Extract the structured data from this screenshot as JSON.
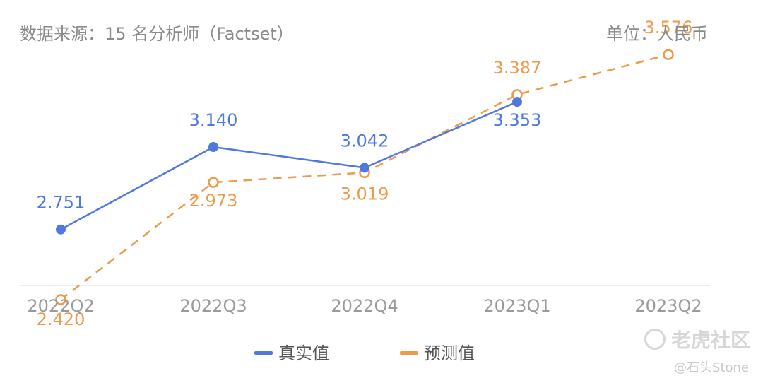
{
  "header": {
    "source": "数据来源：15 名分析师（Factset）",
    "unit": "单位：人民币"
  },
  "legend": {
    "actual": "真实值",
    "forecast": "预测值"
  },
  "watermark": {
    "brand": "老虎社区",
    "user": "@石头Stone"
  },
  "colors": {
    "actual": "#4f79dd",
    "forecast": "#ec9a4c",
    "axis_text": "#9a9a9a",
    "baseline": "#e6e6e6"
  },
  "chart_data": {
    "type": "line",
    "categories": [
      "2022Q2",
      "2022Q3",
      "2022Q4",
      "2023Q1",
      "2023Q2"
    ],
    "ylim": [
      2.2,
      3.7
    ],
    "grid": false,
    "legend_position": "bottom",
    "series": [
      {
        "name": "真实值",
        "values": [
          2.751,
          3.14,
          3.042,
          3.353,
          null
        ],
        "labels": [
          "2.751",
          "3.140",
          "3.042",
          "3.353",
          ""
        ],
        "style": "solid",
        "marker": "filled-circle"
      },
      {
        "name": "预测值",
        "values": [
          2.42,
          2.973,
          3.019,
          3.387,
          3.576
        ],
        "labels": [
          "2.420",
          "2.973",
          "3.019",
          "3.387",
          "3.576"
        ],
        "style": "dashed",
        "marker": "hollow-circle"
      }
    ]
  }
}
